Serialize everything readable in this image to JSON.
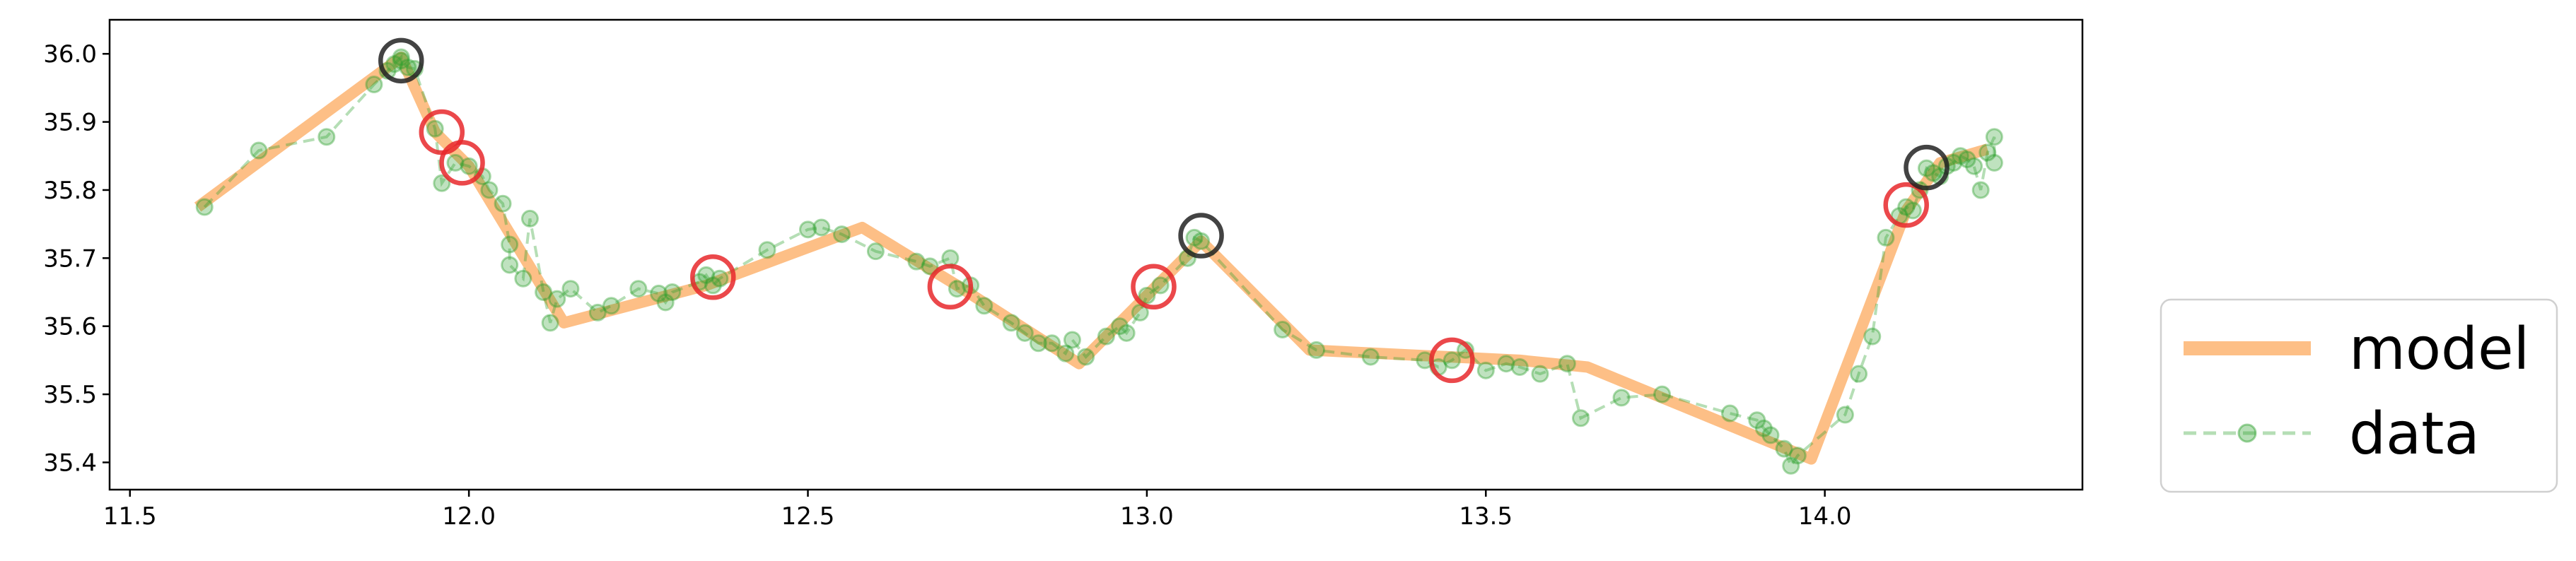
{
  "chart_data": {
    "type": "line",
    "xlim": [
      11.47,
      14.38
    ],
    "ylim": [
      35.36,
      36.05
    ],
    "x_ticks": [
      "11.5",
      "12.0",
      "12.5",
      "13.0",
      "13.5",
      "14.0"
    ],
    "y_ticks": [
      "35.4",
      "35.5",
      "35.6",
      "35.7",
      "35.8",
      "35.9",
      "36.0"
    ],
    "grid": false,
    "legend_position": "outside-lower-right",
    "series": [
      {
        "name": "model",
        "style": "line",
        "color": "#FDBF86",
        "points": [
          [
            11.6,
            35.775
          ],
          [
            11.9,
            35.995
          ],
          [
            11.95,
            35.885
          ],
          [
            12.0,
            35.835
          ],
          [
            12.07,
            35.72
          ],
          [
            12.14,
            35.605
          ],
          [
            12.35,
            35.66
          ],
          [
            12.58,
            35.745
          ],
          [
            12.72,
            35.66
          ],
          [
            12.9,
            35.545
          ],
          [
            13.0,
            35.645
          ],
          [
            13.08,
            35.725
          ],
          [
            13.24,
            35.565
          ],
          [
            13.55,
            35.55
          ],
          [
            13.65,
            35.54
          ],
          [
            13.98,
            35.405
          ],
          [
            14.12,
            35.77
          ],
          [
            14.17,
            35.84
          ],
          [
            14.24,
            35.86
          ]
        ]
      },
      {
        "name": "data",
        "style": "dashed-line-markers",
        "color": "#2CA02C",
        "points": [
          [
            11.61,
            35.775
          ],
          [
            11.69,
            35.858
          ],
          [
            11.79,
            35.878
          ],
          [
            11.86,
            35.955
          ],
          [
            11.88,
            35.975
          ],
          [
            11.89,
            35.985
          ],
          [
            11.9,
            35.995
          ],
          [
            11.9,
            35.99
          ],
          [
            11.91,
            35.98
          ],
          [
            11.92,
            35.978
          ],
          [
            11.95,
            35.89
          ],
          [
            11.96,
            35.81
          ],
          [
            11.98,
            35.84
          ],
          [
            12.0,
            35.835
          ],
          [
            12.02,
            35.82
          ],
          [
            12.03,
            35.8
          ],
          [
            12.05,
            35.78
          ],
          [
            12.06,
            35.72
          ],
          [
            12.06,
            35.69
          ],
          [
            12.08,
            35.67
          ],
          [
            12.09,
            35.758
          ],
          [
            12.11,
            35.65
          ],
          [
            12.12,
            35.605
          ],
          [
            12.13,
            35.64
          ],
          [
            12.15,
            35.655
          ],
          [
            12.19,
            35.62
          ],
          [
            12.21,
            35.63
          ],
          [
            12.25,
            35.655
          ],
          [
            12.28,
            35.648
          ],
          [
            12.29,
            35.635
          ],
          [
            12.3,
            35.65
          ],
          [
            12.34,
            35.665
          ],
          [
            12.35,
            35.675
          ],
          [
            12.36,
            35.66
          ],
          [
            12.37,
            35.67
          ],
          [
            12.44,
            35.712
          ],
          [
            12.5,
            35.742
          ],
          [
            12.52,
            35.745
          ],
          [
            12.55,
            35.735
          ],
          [
            12.6,
            35.71
          ],
          [
            12.66,
            35.695
          ],
          [
            12.68,
            35.688
          ],
          [
            12.71,
            35.7
          ],
          [
            12.72,
            35.655
          ],
          [
            12.74,
            35.66
          ],
          [
            12.76,
            35.63
          ],
          [
            12.8,
            35.605
          ],
          [
            12.82,
            35.59
          ],
          [
            12.84,
            35.575
          ],
          [
            12.86,
            35.575
          ],
          [
            12.88,
            35.56
          ],
          [
            12.89,
            35.58
          ],
          [
            12.91,
            35.555
          ],
          [
            12.94,
            35.585
          ],
          [
            12.96,
            35.6
          ],
          [
            12.97,
            35.59
          ],
          [
            12.99,
            35.62
          ],
          [
            13.0,
            35.645
          ],
          [
            13.02,
            35.66
          ],
          [
            13.06,
            35.7
          ],
          [
            13.07,
            35.73
          ],
          [
            13.08,
            35.725
          ],
          [
            13.2,
            35.595
          ],
          [
            13.25,
            35.565
          ],
          [
            13.33,
            35.555
          ],
          [
            13.41,
            35.55
          ],
          [
            13.43,
            35.54
          ],
          [
            13.45,
            35.55
          ],
          [
            13.47,
            35.565
          ],
          [
            13.5,
            35.535
          ],
          [
            13.53,
            35.545
          ],
          [
            13.55,
            35.54
          ],
          [
            13.58,
            35.53
          ],
          [
            13.62,
            35.545
          ],
          [
            13.64,
            35.465
          ],
          [
            13.7,
            35.495
          ],
          [
            13.76,
            35.5
          ],
          [
            13.86,
            35.472
          ],
          [
            13.9,
            35.462
          ],
          [
            13.91,
            35.45
          ],
          [
            13.92,
            35.44
          ],
          [
            13.94,
            35.42
          ],
          [
            13.95,
            35.395
          ],
          [
            13.96,
            35.41
          ],
          [
            14.03,
            35.47
          ],
          [
            14.05,
            35.53
          ],
          [
            14.07,
            35.585
          ],
          [
            14.09,
            35.73
          ],
          [
            14.11,
            35.762
          ],
          [
            14.12,
            35.775
          ],
          [
            14.13,
            35.77
          ],
          [
            14.14,
            35.8
          ],
          [
            14.15,
            35.832
          ],
          [
            14.16,
            35.825
          ],
          [
            14.17,
            35.82
          ],
          [
            14.18,
            35.835
          ],
          [
            14.19,
            35.84
          ],
          [
            14.2,
            35.85
          ],
          [
            14.21,
            35.845
          ],
          [
            14.22,
            35.835
          ],
          [
            14.23,
            35.8
          ],
          [
            14.24,
            35.855
          ],
          [
            14.25,
            35.878
          ],
          [
            14.25,
            35.84
          ]
        ]
      }
    ],
    "highlights": {
      "red_circles": [
        [
          11.96,
          35.885
        ],
        [
          11.99,
          35.84
        ],
        [
          12.36,
          35.672
        ],
        [
          12.71,
          35.658
        ],
        [
          13.01,
          35.658
        ],
        [
          13.45,
          35.55
        ],
        [
          14.12,
          35.778
        ]
      ],
      "black_circles": [
        [
          11.9,
          35.99
        ],
        [
          13.08,
          35.733
        ],
        [
          14.15,
          35.833
        ]
      ]
    },
    "legend": {
      "entries": [
        "model",
        "data"
      ]
    }
  }
}
